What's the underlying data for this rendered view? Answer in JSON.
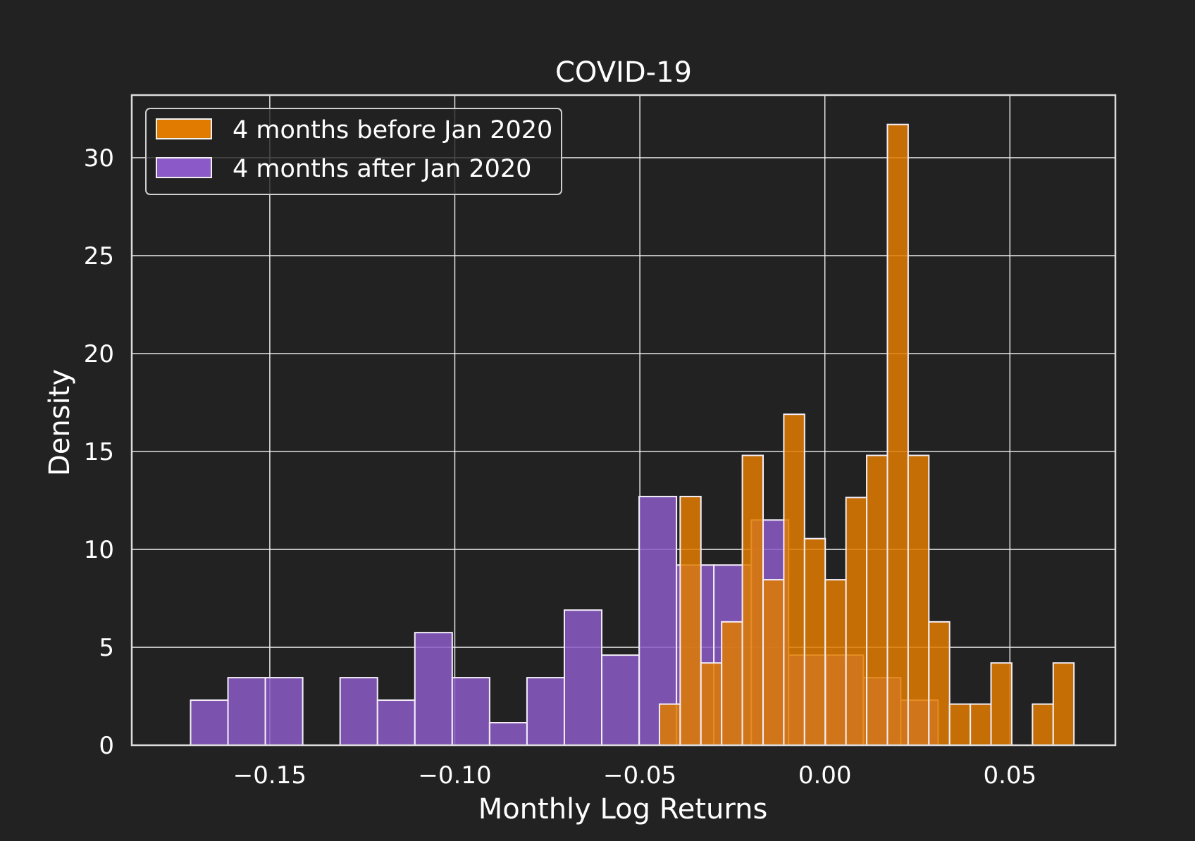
{
  "chart_data": {
    "type": "histogram",
    "title": "COVID-19",
    "xlabel": "Monthly Log Returns",
    "ylabel": "Density",
    "xlim": [
      -0.1873,
      0.0785
    ],
    "ylim": [
      0,
      33.2
    ],
    "xticks": [
      -0.15,
      -0.1,
      -0.05,
      0.0,
      0.05
    ],
    "xtick_labels": [
      "−0.15",
      "−0.10",
      "−0.05",
      "0.00",
      "0.05"
    ],
    "yticks": [
      0,
      5,
      10,
      15,
      20,
      25,
      30
    ],
    "ytick_labels": [
      "0",
      "5",
      "10",
      "15",
      "20",
      "25",
      "30"
    ],
    "grid": true,
    "legend_position": "top-left",
    "series": [
      {
        "name": "4 months after Jan 2020",
        "color": "#8c5ac8",
        "alpha": 0.85,
        "bins": [
          {
            "x0": -0.1714,
            "x1": -0.1613,
            "value": 2.3
          },
          {
            "x0": -0.1613,
            "x1": -0.1512,
            "value": 3.45
          },
          {
            "x0": -0.1512,
            "x1": -0.1411,
            "value": 3.45
          },
          {
            "x0": -0.131,
            "x1": -0.1209,
            "value": 3.45
          },
          {
            "x0": -0.1209,
            "x1": -0.1108,
            "value": 2.3
          },
          {
            "x0": -0.1108,
            "x1": -0.1007,
            "value": 5.75
          },
          {
            "x0": -0.1007,
            "x1": -0.0906,
            "value": 3.45
          },
          {
            "x0": -0.0906,
            "x1": -0.0805,
            "value": 1.15
          },
          {
            "x0": -0.0805,
            "x1": -0.0704,
            "value": 3.45
          },
          {
            "x0": -0.0704,
            "x1": -0.0603,
            "value": 6.9
          },
          {
            "x0": -0.0603,
            "x1": -0.0502,
            "value": 4.6
          },
          {
            "x0": -0.0502,
            "x1": -0.0401,
            "value": 12.7
          },
          {
            "x0": -0.0401,
            "x1": -0.03,
            "value": 9.2
          },
          {
            "x0": -0.03,
            "x1": -0.0199,
            "value": 9.2
          },
          {
            "x0": -0.0199,
            "x1": -0.0098,
            "value": 11.5
          },
          {
            "x0": -0.0098,
            "x1": 0.0003,
            "value": 4.6
          },
          {
            "x0": 0.0003,
            "x1": 0.0104,
            "value": 4.6
          },
          {
            "x0": 0.0104,
            "x1": 0.0205,
            "value": 3.45
          },
          {
            "x0": 0.0205,
            "x1": 0.0306,
            "value": 2.3
          }
        ]
      },
      {
        "name": "4 months before Jan 2020",
        "color": "#e07b00",
        "alpha": 0.85,
        "bins": [
          {
            "x0": -0.0447,
            "x1": -0.0391,
            "value": 2.1
          },
          {
            "x0": -0.0391,
            "x1": -0.0335,
            "value": 12.7
          },
          {
            "x0": -0.0335,
            "x1": -0.0279,
            "value": 4.2
          },
          {
            "x0": -0.0279,
            "x1": -0.0223,
            "value": 6.3
          },
          {
            "x0": -0.0223,
            "x1": -0.0167,
            "value": 14.8
          },
          {
            "x0": -0.0167,
            "x1": -0.0111,
            "value": 8.45
          },
          {
            "x0": -0.0111,
            "x1": -0.0055,
            "value": 16.9
          },
          {
            "x0": -0.0055,
            "x1": 0.0001,
            "value": 10.55
          },
          {
            "x0": 0.0001,
            "x1": 0.0057,
            "value": 8.45
          },
          {
            "x0": 0.0057,
            "x1": 0.0113,
            "value": 12.65
          },
          {
            "x0": 0.0113,
            "x1": 0.0169,
            "value": 14.8
          },
          {
            "x0": 0.0169,
            "x1": 0.0225,
            "value": 31.7
          },
          {
            "x0": 0.0225,
            "x1": 0.0281,
            "value": 14.8
          },
          {
            "x0": 0.0281,
            "x1": 0.0337,
            "value": 6.3
          },
          {
            "x0": 0.0337,
            "x1": 0.0393,
            "value": 2.1
          },
          {
            "x0": 0.0393,
            "x1": 0.0449,
            "value": 2.1
          },
          {
            "x0": 0.0449,
            "x1": 0.0505,
            "value": 4.2
          },
          {
            "x0": 0.0561,
            "x1": 0.0617,
            "value": 2.1
          },
          {
            "x0": 0.0617,
            "x1": 0.0673,
            "value": 4.2
          }
        ]
      }
    ],
    "legend": [
      {
        "label": "4 months before Jan 2020",
        "color": "#e07b00"
      },
      {
        "label": "4 months after Jan 2020",
        "color": "#8c5ac8"
      }
    ]
  }
}
